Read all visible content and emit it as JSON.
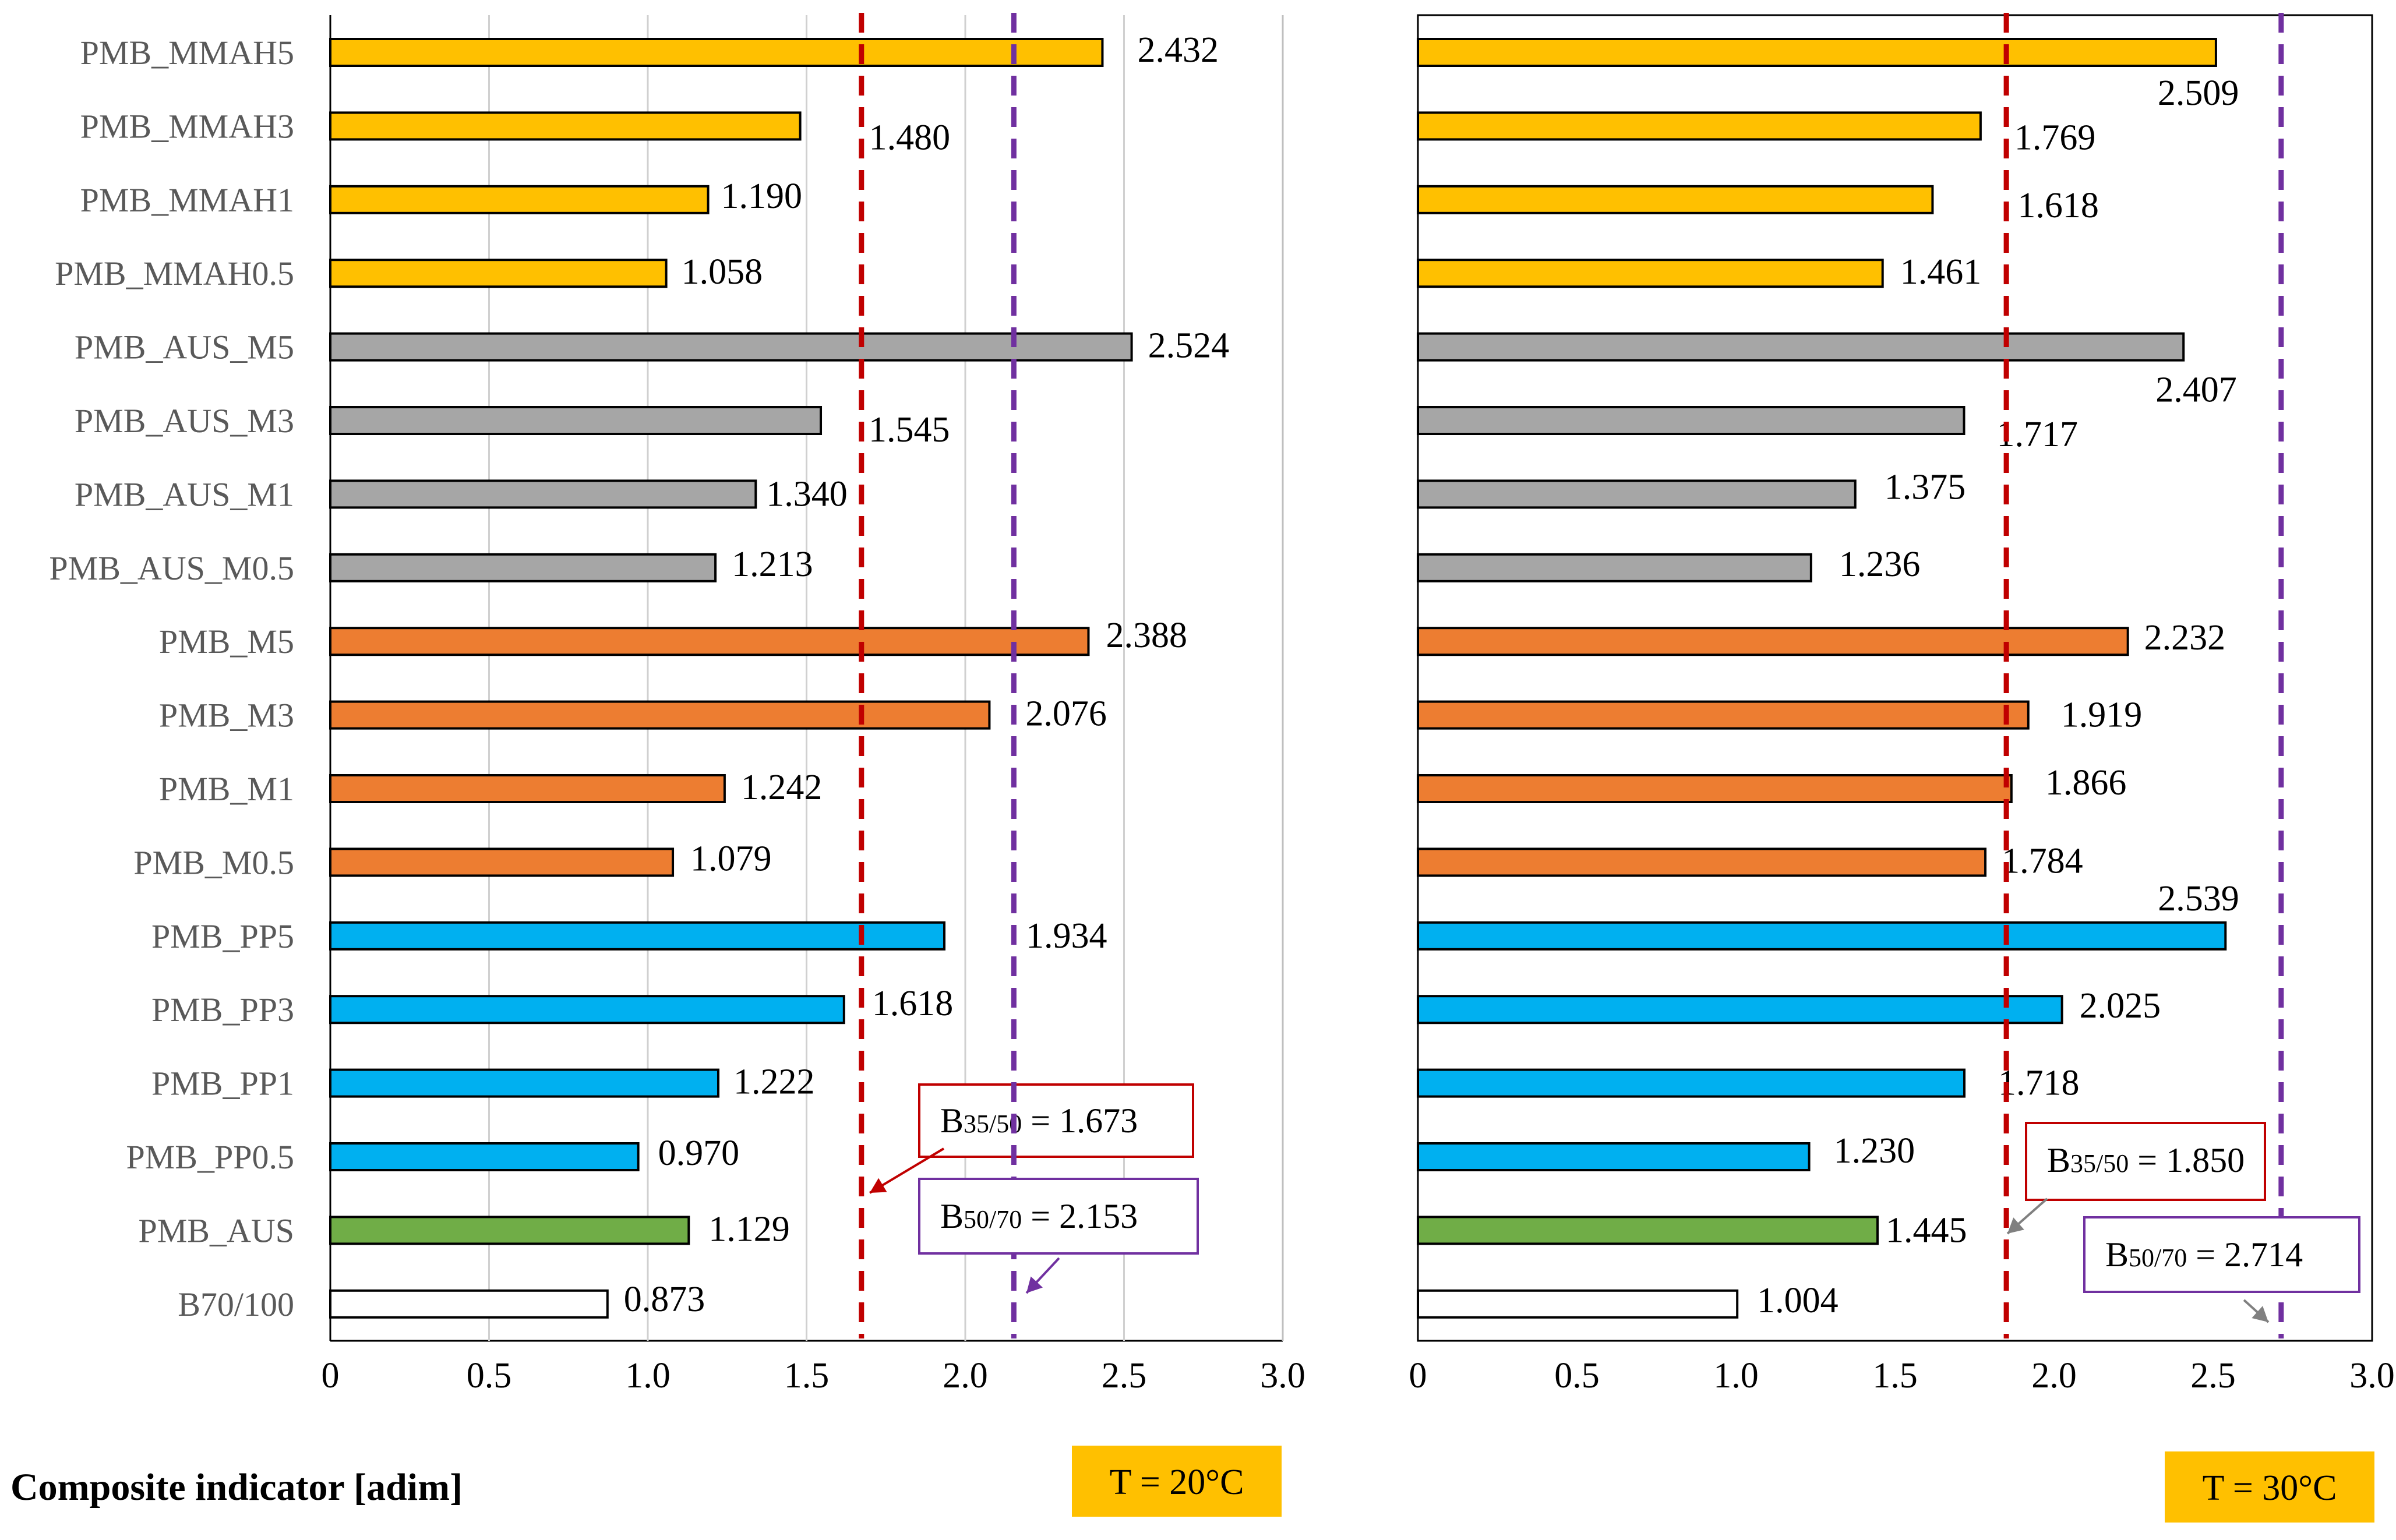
{
  "chart_data": [
    {
      "type": "bar",
      "orientation": "horizontal",
      "panel_label": "T = 20°C",
      "xlim": [
        0,
        3.0
      ],
      "xticks": [
        "0",
        "0.5",
        "1.0",
        "1.5",
        "2.0",
        "2.5",
        "3.0"
      ],
      "grid": "vertical",
      "categories": [
        "PMB_MMAH5",
        "PMB_MMAH3",
        "PMB_MMAH1",
        "PMB_MMAH0.5",
        "PMB_AUS_M5",
        "PMB_AUS_M3",
        "PMB_AUS_M1",
        "PMB_AUS_M0.5",
        "PMB_M5",
        "PMB_M3",
        "PMB_M1",
        "PMB_M0.5",
        "PMB_PP5",
        "PMB_PP3",
        "PMB_PP1",
        "PMB_PP0.5",
        "PMB_AUS",
        "B70/100"
      ],
      "values": [
        2.432,
        1.48,
        1.19,
        1.058,
        2.524,
        1.545,
        1.34,
        1.213,
        2.388,
        2.076,
        1.242,
        1.079,
        1.934,
        1.618,
        1.222,
        0.97,
        1.129,
        0.873
      ],
      "labels": [
        "2.432",
        "1.480",
        "1.190",
        "1.058",
        "2.524",
        "1.545",
        "1.340",
        "1.213",
        "2.388",
        "2.076",
        "1.242",
        "1.079",
        "1.934",
        "1.618",
        "1.222",
        "0.970",
        "1.129",
        "0.873"
      ],
      "reference_lines": [
        {
          "name": "B35/50",
          "value": 1.673,
          "prefix": "B",
          "sub": "35/50",
          "suffix": " = 1.673",
          "color": "#c00000"
        },
        {
          "name": "B50/70",
          "value": 2.153,
          "prefix": "B",
          "sub": "50/70",
          "suffix": " = 2.153",
          "color": "#7030a0"
        }
      ]
    },
    {
      "type": "bar",
      "orientation": "horizontal",
      "panel_label": "T = 30°C",
      "xlim": [
        0,
        3.0
      ],
      "xticks": [
        "0",
        "0.5",
        "1.0",
        "1.5",
        "2.0",
        "2.5",
        "3.0"
      ],
      "grid": "none",
      "categories": [
        "PMB_MMAH5",
        "PMB_MMAH3",
        "PMB_MMAH1",
        "PMB_MMAH0.5",
        "PMB_AUS_M5",
        "PMB_AUS_M3",
        "PMB_AUS_M1",
        "PMB_AUS_M0.5",
        "PMB_M5",
        "PMB_M3",
        "PMB_M1",
        "PMB_M0.5",
        "PMB_PP5",
        "PMB_PP3",
        "PMB_PP1",
        "PMB_PP0.5",
        "PMB_AUS",
        "B70/100"
      ],
      "values": [
        2.509,
        1.769,
        1.618,
        1.461,
        2.407,
        1.717,
        1.375,
        1.236,
        2.232,
        1.919,
        1.866,
        1.784,
        2.539,
        2.025,
        1.718,
        1.23,
        1.445,
        1.004
      ],
      "labels": [
        "2.509",
        "1.769",
        "1.618",
        "1.461",
        "2.407",
        "1.717",
        "1.375",
        "1.236",
        "2.232",
        "1.919",
        "1.866",
        "1.784",
        "2.539",
        "2.025",
        "1.718",
        "1.230",
        "1.445",
        "1.004"
      ],
      "reference_lines": [
        {
          "name": "B35/50",
          "value": 1.85,
          "prefix": "B",
          "sub": "35/50",
          "suffix": " = 1.850",
          "color": "#c00000"
        },
        {
          "name": "B50/70",
          "value": 2.714,
          "prefix": "B",
          "sub": "50/70",
          "suffix": " = 2.714",
          "color": "#7030a0"
        }
      ]
    }
  ],
  "group_colors": {
    "MMAH": "#ffc000",
    "AUS_M": "#a6a6a6",
    "M": "#ed7d31",
    "PP": "#00b0f0",
    "AUS": "#70ad47",
    "base": "#ffffff"
  },
  "xlabel": "Composite indicator [adim]",
  "temp_box_color": "#ffc000"
}
